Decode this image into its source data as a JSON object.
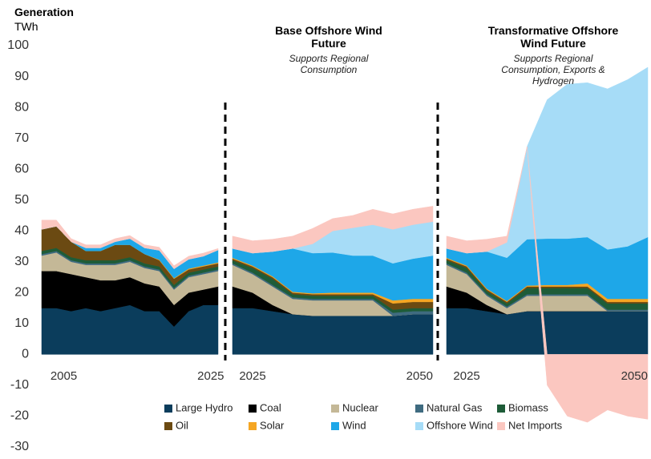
{
  "chart_data": {
    "type": "area",
    "ylabel": "Generation",
    "yunit": "TWh",
    "ylim": [
      -30,
      100
    ],
    "yticks": [
      -30,
      -20,
      -10,
      0,
      10,
      20,
      30,
      40,
      50,
      60,
      70,
      80,
      90,
      100
    ],
    "series": [
      {
        "name": "Large Hydro",
        "color": "#0b3d5c"
      },
      {
        "name": "Coal",
        "color": "#000000"
      },
      {
        "name": "Nuclear",
        "color": "#c4b897"
      },
      {
        "name": "Natural Gas",
        "color": "#3f6b80"
      },
      {
        "name": "Biomass",
        "color": "#1e5c38"
      },
      {
        "name": "Oil",
        "color": "#6b4a12"
      },
      {
        "name": "Solar",
        "color": "#f5a623"
      },
      {
        "name": "Wind",
        "color": "#1ea7e8"
      },
      {
        "name": "Offshore Wind",
        "color": "#a6dcf7"
      },
      {
        "name": "Net Imports",
        "color": "#fbc7c0"
      }
    ],
    "panels": [
      {
        "x": [
          2002,
          2004,
          2006,
          2008,
          2010,
          2012,
          2014,
          2016,
          2018,
          2020,
          2022,
          2024,
          2026
        ],
        "xlim": [
          2002,
          2026
        ],
        "xticks": [
          2005,
          2025
        ],
        "values": [
          [
            15,
            15,
            14,
            15,
            14,
            15,
            16,
            14,
            14,
            9,
            14,
            16,
            16
          ],
          [
            12,
            12,
            12,
            10,
            10,
            9,
            9,
            9,
            8,
            7,
            6,
            5,
            6
          ],
          [
            5,
            6,
            4,
            4,
            5,
            5,
            5,
            5,
            5,
            5,
            5,
            5,
            5
          ],
          [
            0.5,
            0.5,
            0.5,
            0.5,
            0.5,
            0.5,
            0.5,
            0.5,
            0.5,
            0.5,
            0.5,
            0.5,
            0.5
          ],
          [
            1,
            1,
            1,
            1,
            1,
            1,
            1,
            1,
            1,
            1,
            1,
            1,
            1
          ],
          [
            7,
            7,
            5,
            3,
            3,
            5,
            4,
            3,
            2,
            2,
            1,
            1,
            1
          ],
          [
            0,
            0,
            0,
            0,
            0,
            0,
            0,
            0,
            0.2,
            0.2,
            0.3,
            0.3,
            0.3
          ],
          [
            0,
            0,
            0,
            1,
            1,
            1,
            2,
            2,
            3,
            3,
            3,
            3,
            4
          ],
          [
            0,
            0,
            0,
            0,
            0,
            0,
            0,
            0,
            0,
            0,
            0,
            0,
            0
          ],
          [
            3,
            2,
            1,
            1,
            1,
            1,
            1,
            1,
            1,
            1,
            1,
            1,
            0.5
          ]
        ]
      },
      {
        "title": "Base Offshore Wind Future",
        "subtitle": "Supports Regional Consumption",
        "x": [
          2022,
          2025,
          2028,
          2031,
          2034,
          2037,
          2040,
          2043,
          2046,
          2049,
          2052
        ],
        "xlim": [
          2022,
          2052
        ],
        "xticks": [
          2025,
          2050
        ],
        "values": [
          [
            15,
            15,
            14,
            13,
            12.5,
            12.5,
            12.5,
            12.5,
            12.5,
            13,
            13
          ],
          [
            7,
            5,
            2,
            0,
            0,
            0,
            0,
            0,
            0,
            0,
            0
          ],
          [
            7,
            6,
            6,
            5,
            5,
            5,
            5,
            5,
            0,
            0,
            0
          ],
          [
            0.5,
            0.5,
            0.5,
            0.5,
            0.5,
            0.5,
            0.5,
            0.5,
            1,
            1,
            1
          ],
          [
            1,
            1.5,
            2,
            1,
            1,
            1,
            1,
            1,
            1,
            1,
            1
          ],
          [
            0.5,
            0.5,
            0.5,
            0.5,
            0.5,
            0.5,
            0.5,
            0.5,
            2,
            2,
            2
          ],
          [
            0.3,
            0.3,
            0.3,
            0.3,
            0.3,
            0.5,
            0.5,
            0.5,
            1,
            1,
            1
          ],
          [
            3,
            4,
            8,
            14,
            13,
            13,
            12,
            12,
            12,
            13,
            14
          ],
          [
            0,
            0,
            0,
            0,
            3,
            7,
            9,
            10,
            11,
            11,
            11
          ],
          [
            4,
            4,
            4,
            4,
            5,
            4,
            4,
            5,
            5,
            5,
            5
          ]
        ]
      },
      {
        "title": "Transformative Offshore Wind Future",
        "subtitle": "Supports Regional Consumption, Exports & Hydrogen",
        "x": [
          2022,
          2025,
          2028,
          2031,
          2034,
          2037,
          2040,
          2043,
          2046,
          2049,
          2052
        ],
        "xlim": [
          2022,
          2052
        ],
        "xticks": [
          2025,
          2050
        ],
        "values": [
          [
            15,
            15,
            14,
            13,
            14,
            14,
            14,
            14,
            14,
            14,
            14
          ],
          [
            7,
            5,
            2,
            0,
            0,
            0,
            0,
            0,
            0,
            0,
            0
          ],
          [
            7,
            6,
            3,
            2,
            5,
            5,
            5,
            5,
            0,
            0,
            0
          ],
          [
            0.5,
            0.5,
            0.5,
            0.5,
            0.5,
            0.5,
            0.5,
            0.5,
            0.5,
            0.5,
            0.5
          ],
          [
            1,
            1.5,
            1,
            1,
            2,
            2,
            2,
            2,
            2,
            2,
            2
          ],
          [
            0.5,
            0.5,
            0.5,
            0.5,
            0.5,
            0.5,
            0.5,
            0.5,
            0.5,
            0.5,
            0.5
          ],
          [
            0.3,
            0.3,
            0.3,
            0.3,
            0.3,
            0.5,
            0.5,
            1,
            1,
            1,
            1
          ],
          [
            3,
            4,
            12,
            14,
            15,
            15,
            15,
            15,
            16,
            17,
            20
          ],
          [
            0,
            0,
            0,
            5,
            30,
            45,
            50,
            50,
            52,
            54,
            55
          ],
          [
            4,
            4,
            4,
            2,
            0,
            -10,
            -20,
            -22,
            -18,
            -20,
            -21
          ]
        ]
      }
    ]
  }
}
